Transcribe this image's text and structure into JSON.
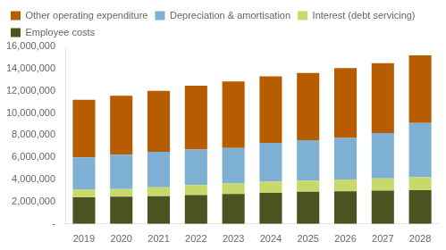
{
  "chart_data": {
    "type": "bar",
    "stacked": true,
    "categories": [
      "2019",
      "2020",
      "2021",
      "2022",
      "2023",
      "2024",
      "2025",
      "2026",
      "2027",
      "2028"
    ],
    "series": [
      {
        "name": "Employee costs",
        "color": "#4b5320",
        "values": [
          2400000,
          2450000,
          2500000,
          2600000,
          2700000,
          2800000,
          2900000,
          2950000,
          3000000,
          3050000
        ]
      },
      {
        "name": "Interest (debt servicing)",
        "color": "#c8d96b",
        "values": [
          700000,
          700000,
          800000,
          900000,
          950000,
          1000000,
          1000000,
          1050000,
          1100000,
          1150000
        ]
      },
      {
        "name": "Depreciation & amortisation",
        "color": "#7eb0d4",
        "values": [
          2900000,
          3100000,
          3200000,
          3200000,
          3200000,
          3500000,
          3650000,
          3750000,
          4100000,
          4900000
        ]
      },
      {
        "name": "Other operating expenditure",
        "color": "#b85c00",
        "values": [
          5200000,
          5300000,
          5500000,
          5750000,
          6000000,
          6000000,
          6050000,
          6300000,
          6300000,
          6100000
        ]
      }
    ],
    "ylim": [
      0,
      16000000
    ],
    "yticks": [
      {
        "value": 0,
        "label": "-"
      },
      {
        "value": 2000000,
        "label": "2,000,000"
      },
      {
        "value": 4000000,
        "label": "4,000,000"
      },
      {
        "value": 6000000,
        "label": "6,000,000"
      },
      {
        "value": 8000000,
        "label": "8,000,000"
      },
      {
        "value": 10000000,
        "label": "10,000,000"
      },
      {
        "value": 12000000,
        "label": "12,000,000"
      },
      {
        "value": 14000000,
        "label": "14,000,000"
      },
      {
        "value": 16000000,
        "label": "16,000,000"
      }
    ],
    "grid": false,
    "legend": "upper left"
  }
}
